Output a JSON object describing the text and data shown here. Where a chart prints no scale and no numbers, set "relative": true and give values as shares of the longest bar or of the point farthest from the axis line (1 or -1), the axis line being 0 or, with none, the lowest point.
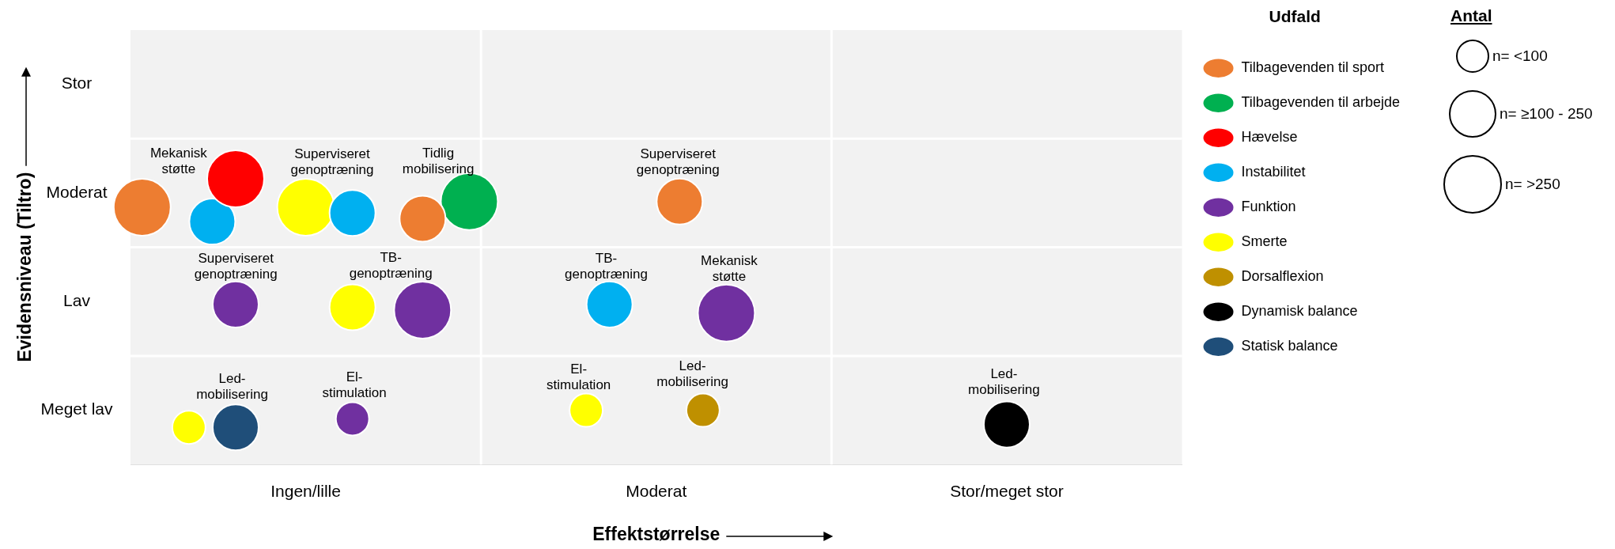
{
  "chart_data": {
    "type": "bubble",
    "relative": true,
    "xlabel": "Effektstørrelse",
    "legend_title": "Udfald",
    "legend": "top right",
    "grid": true,
    "marker": "circle",
    "categories": [
      null,
      null,
      null,
      null,
      null,
      null,
      null,
      "Ingen/lille",
      null,
      null,
      null,
      null,
      null,
      null,
      null,
      null,
      null,
      null,
      null,
      null,
      null,
      null,
      "Moderat",
      null,
      null,
      null,
      null,
      null,
      null,
      null,
      null,
      null,
      null,
      null,
      null,
      null,
      null,
      "Stor/meget stor",
      null,
      null,
      null,
      null,
      null,
      null,
      null
    ],
    "y_categories": [
      "Stor",
      "Moderat",
      "Lav",
      "Meget lav"
    ],
    "series": [
      {
        "name": "Tilbagevenden til sport",
        "color": "#ed7d31",
        "values": [
          0.9,
          null,
          null,
          null,
          null,
          null,
          null,
          null,
          null,
          null,
          null,
          null,
          0.86,
          null,
          null,
          null,
          null,
          null,
          null,
          null,
          null,
          null,
          null,
          0.92,
          null,
          null,
          null,
          null,
          null,
          null,
          null,
          null,
          null,
          null,
          null,
          null,
          null,
          null,
          null,
          null,
          null,
          null,
          null,
          null,
          null
        ],
        "sizes": [
          1,
          null,
          null,
          null,
          null,
          null,
          null,
          null,
          null,
          null,
          null,
          null,
          0.65,
          null,
          null,
          null,
          null,
          null,
          null,
          null,
          null,
          null,
          null,
          0.65,
          null,
          null,
          null,
          null,
          null,
          null,
          null,
          null,
          null,
          null,
          null,
          null,
          null,
          null,
          null,
          null,
          null,
          null,
          null,
          null,
          null
        ]
      },
      {
        "name": "Tilbagevenden til arbejde",
        "color": "#00b050",
        "values": [
          null,
          null,
          null,
          null,
          null,
          null,
          null,
          null,
          null,
          null,
          null,
          null,
          null,
          null,
          0.92,
          null,
          null,
          null,
          null,
          null,
          null,
          null,
          null,
          null,
          null,
          null,
          null,
          null,
          null,
          null,
          null,
          null,
          null,
          null,
          null,
          null,
          null,
          null,
          null,
          null,
          null,
          null,
          null,
          null,
          null
        ],
        "sizes": [
          null,
          null,
          null,
          null,
          null,
          null,
          null,
          null,
          null,
          null,
          null,
          null,
          null,
          null,
          1,
          null,
          null,
          null,
          null,
          null,
          null,
          null,
          null,
          null,
          null,
          null,
          null,
          null,
          null,
          null,
          null,
          null,
          null,
          null,
          null,
          null,
          null,
          null,
          null,
          null,
          null,
          null,
          null,
          null,
          null
        ]
      },
      {
        "name": "Hævelse",
        "color": "#ff0000",
        "values": [
          null,
          null,
          null,
          null,
          1,
          null,
          null,
          null,
          null,
          null,
          null,
          null,
          null,
          null,
          null,
          null,
          null,
          null,
          null,
          null,
          null,
          null,
          null,
          null,
          null,
          null,
          null,
          null,
          null,
          null,
          null,
          null,
          null,
          null,
          null,
          null,
          null,
          null,
          null,
          null,
          null,
          null,
          null,
          null,
          null
        ],
        "sizes": [
          null,
          null,
          null,
          null,
          1,
          null,
          null,
          null,
          null,
          null,
          null,
          null,
          null,
          null,
          null,
          null,
          null,
          null,
          null,
          null,
          null,
          null,
          null,
          null,
          null,
          null,
          null,
          null,
          null,
          null,
          null,
          null,
          null,
          null,
          null,
          null,
          null,
          null,
          null,
          null,
          null,
          null,
          null,
          null,
          null
        ]
      },
      {
        "name": "Instabilitet",
        "color": "#00b0f0",
        "values": [
          null,
          null,
          null,
          0.85,
          null,
          null,
          null,
          null,
          null,
          0.88,
          null,
          null,
          null,
          null,
          null,
          null,
          null,
          null,
          null,
          null,
          0.56,
          null,
          null,
          null,
          null,
          null,
          null,
          null,
          null,
          null,
          null,
          null,
          null,
          null,
          null,
          null,
          null,
          null,
          null,
          null,
          null,
          null,
          null,
          null,
          null
        ],
        "sizes": [
          null,
          null,
          null,
          0.65,
          null,
          null,
          null,
          null,
          null,
          0.65,
          null,
          null,
          null,
          null,
          null,
          null,
          null,
          null,
          null,
          null,
          0.65,
          null,
          null,
          null,
          null,
          null,
          null,
          null,
          null,
          null,
          null,
          null,
          null,
          null,
          null,
          null,
          null,
          null,
          null,
          null,
          null,
          null,
          null,
          null,
          null
        ]
      },
      {
        "name": "Funktion",
        "color": "#7030a0",
        "values": [
          null,
          null,
          null,
          null,
          0.56,
          null,
          null,
          null,
          null,
          0.16,
          null,
          null,
          0.54,
          null,
          null,
          null,
          null,
          null,
          null,
          null,
          null,
          null,
          null,
          null,
          null,
          0.53,
          null,
          null,
          null,
          null,
          null,
          null,
          null,
          null,
          null,
          null,
          null,
          null,
          null,
          null,
          null,
          null,
          null,
          null,
          null
        ],
        "sizes": [
          null,
          null,
          null,
          null,
          0.65,
          null,
          null,
          null,
          null,
          0.34,
          null,
          null,
          1,
          null,
          null,
          null,
          null,
          null,
          null,
          null,
          null,
          null,
          null,
          null,
          null,
          1,
          null,
          null,
          null,
          null,
          null,
          null,
          null,
          null,
          null,
          null,
          null,
          null,
          null,
          null,
          null,
          null,
          null,
          null,
          null
        ]
      },
      {
        "name": "Smerte",
        "color": "#ffff00",
        "values": [
          null,
          null,
          0.13,
          null,
          null,
          null,
          null,
          0.9,
          null,
          0.55,
          null,
          null,
          null,
          null,
          null,
          null,
          null,
          null,
          null,
          0.19,
          null,
          null,
          null,
          null,
          null,
          null,
          null,
          null,
          null,
          null,
          null,
          null,
          null,
          null,
          null,
          null,
          null,
          null,
          null,
          null,
          null,
          null,
          null,
          null,
          null
        ],
        "sizes": [
          null,
          null,
          0.34,
          null,
          null,
          null,
          null,
          1,
          null,
          0.65,
          null,
          null,
          null,
          null,
          null,
          null,
          null,
          null,
          null,
          0.34,
          null,
          null,
          null,
          null,
          null,
          null,
          null,
          null,
          null,
          null,
          null,
          null,
          null,
          null,
          null,
          null,
          null,
          null,
          null,
          null,
          null,
          null,
          null,
          null,
          null
        ]
      },
      {
        "name": "Dorsalflexion",
        "color": "#bf9000",
        "values": [
          null,
          null,
          null,
          null,
          null,
          null,
          null,
          null,
          null,
          null,
          null,
          null,
          null,
          null,
          null,
          null,
          null,
          null,
          null,
          null,
          null,
          null,
          null,
          null,
          0.19,
          null,
          null,
          null,
          null,
          null,
          null,
          null,
          null,
          null,
          null,
          null,
          null,
          null,
          null,
          null,
          null,
          null,
          null,
          null,
          null
        ],
        "sizes": [
          null,
          null,
          null,
          null,
          null,
          null,
          null,
          null,
          null,
          null,
          null,
          null,
          null,
          null,
          null,
          null,
          null,
          null,
          null,
          null,
          null,
          null,
          null,
          null,
          0.34,
          null,
          null,
          null,
          null,
          null,
          null,
          null,
          null,
          null,
          null,
          null,
          null,
          null,
          null,
          null,
          null,
          null,
          null,
          null,
          null
        ]
      },
      {
        "name": "Dynamisk balance",
        "color": "#000000",
        "values": [
          null,
          null,
          null,
          null,
          null,
          null,
          null,
          null,
          null,
          null,
          null,
          null,
          null,
          null,
          null,
          null,
          null,
          null,
          null,
          null,
          null,
          null,
          null,
          null,
          null,
          null,
          null,
          null,
          null,
          null,
          null,
          null,
          null,
          null,
          null,
          null,
          null,
          0.14,
          null,
          null,
          null,
          null,
          null,
          null,
          null
        ],
        "sizes": [
          null,
          null,
          null,
          null,
          null,
          null,
          null,
          null,
          null,
          null,
          null,
          null,
          null,
          null,
          null,
          null,
          null,
          null,
          null,
          null,
          null,
          null,
          null,
          null,
          null,
          null,
          null,
          null,
          null,
          null,
          null,
          null,
          null,
          null,
          null,
          null,
          null,
          0.65,
          null,
          null,
          null,
          null,
          null,
          null,
          null
        ]
      },
      {
        "name": "Statisk balance",
        "color": "#1f4e79",
        "values": [
          null,
          null,
          null,
          null,
          0.13,
          null,
          null,
          null,
          null,
          null,
          null,
          null,
          null,
          null,
          null,
          null,
          null,
          null,
          null,
          null,
          null,
          null,
          null,
          null,
          null,
          null,
          null,
          null,
          null,
          null,
          null,
          null,
          null,
          null,
          null,
          null,
          null,
          null,
          null,
          null,
          null,
          null,
          null,
          null,
          null
        ],
        "sizes": [
          null,
          null,
          null,
          null,
          0.65,
          null,
          null,
          null,
          null,
          null,
          null,
          null,
          null,
          null,
          null,
          null,
          null,
          null,
          null,
          null,
          null,
          null,
          null,
          null,
          null,
          null,
          null,
          null,
          null,
          null,
          null,
          null,
          null,
          null,
          null,
          null,
          null,
          null,
          null,
          null,
          null,
          null,
          null,
          null,
          null
        ]
      }
    ],
    "annotations": [
      "Antal",
      "n= <100",
      "n= ≥100 - 250",
      "n= >250",
      "Mekanisk\nstøtte",
      "Superviseret\ngenoptræning",
      "Tidlig\nmobilisering",
      "Superviseret\ngenoptræning",
      "Superviseret\ngenoptræning",
      "TB-\ngenoptræning",
      "TB-\ngenoptræning",
      "Mekanisk\nstøtte",
      "Led-\nmobilisering",
      "El-\nstimulation",
      "El-\nstimulation",
      "Led-\nmobilisering",
      "Led-\nmobilisering",
      "Evidensniveau (Tiltro)"
    ]
  }
}
